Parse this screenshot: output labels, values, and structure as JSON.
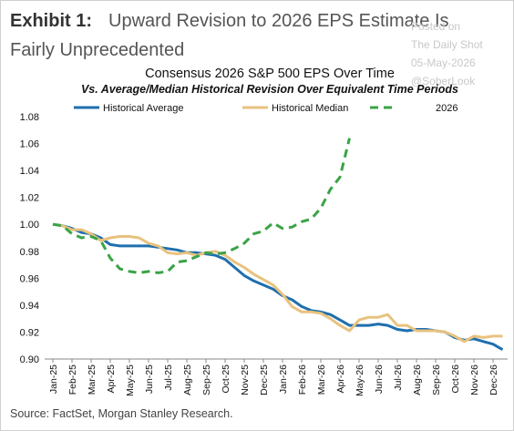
{
  "header": {
    "exhibit": "Exhibit 1:",
    "title": "Upward Revision to 2026 EPS Estimate Is Fairly Unprecedented"
  },
  "watermark": [
    "Posted on",
    "The Daily Shot",
    "05-May-2026",
    "@SoberLook"
  ],
  "source": "Source: FactSet, Morgan Stanley Research.",
  "chart_data": {
    "type": "line",
    "title": "Consensus 2026 S&P 500 EPS Over Time",
    "subtitle": "Vs. Average/Median Historical Revision Over Equivalent Time Periods",
    "categories": [
      "Jan-25",
      null,
      "Feb-25",
      null,
      "Mar-25",
      null,
      "Apr-25",
      null,
      "May-25",
      null,
      "Jun-25",
      null,
      "Jul-25",
      null,
      "Aug-25",
      null,
      "Sep-25",
      null,
      "Oct-25",
      null,
      "Nov-25",
      null,
      "Dec-25",
      null,
      "Jan-26",
      null,
      "Feb-26",
      null,
      "Mar-26",
      null,
      "Apr-26",
      null,
      "May-26",
      null,
      "Jun-26",
      null,
      "Jul-26",
      null,
      "Aug-26",
      null,
      "Sep-26",
      null,
      "Oct-26",
      null,
      "Nov-26",
      null,
      "Dec-26",
      null
    ],
    "series": [
      {
        "name": "Historical Average",
        "color": "#1f6fae",
        "dashed": false,
        "values": [
          1.0,
          0.999,
          0.997,
          0.994,
          0.993,
          0.99,
          0.985,
          0.984,
          0.984,
          0.984,
          0.984,
          0.983,
          0.982,
          0.981,
          0.979,
          0.979,
          0.978,
          0.977,
          0.974,
          0.968,
          0.962,
          0.958,
          0.955,
          0.952,
          0.947,
          0.944,
          0.939,
          0.936,
          0.935,
          0.933,
          0.929,
          0.925,
          0.925,
          0.925,
          0.926,
          0.925,
          0.922,
          0.921,
          0.922,
          0.922,
          0.921,
          0.92,
          0.916,
          0.914,
          0.915,
          0.913,
          0.911,
          0.907
        ]
      },
      {
        "name": "Historical Median",
        "color": "#e8c27e",
        "dashed": false,
        "values": [
          1.0,
          0.999,
          0.996,
          0.996,
          0.993,
          0.988,
          0.99,
          0.991,
          0.991,
          0.99,
          0.986,
          0.984,
          0.979,
          0.978,
          0.979,
          0.977,
          0.979,
          0.98,
          0.977,
          0.972,
          0.968,
          0.963,
          0.959,
          0.955,
          0.948,
          0.939,
          0.935,
          0.935,
          0.934,
          0.93,
          0.925,
          0.921,
          0.929,
          0.931,
          0.931,
          0.933,
          0.925,
          0.925,
          0.921,
          0.921,
          0.921,
          0.92,
          0.917,
          0.913,
          0.917,
          0.916,
          0.917,
          0.917
        ]
      },
      {
        "name": "2026",
        "color": "#3aa346",
        "dashed": true,
        "values": [
          1.0,
          0.999,
          0.993,
          0.99,
          0.991,
          0.988,
          0.975,
          0.967,
          0.965,
          0.964,
          0.965,
          0.964,
          0.965,
          0.972,
          0.973,
          0.976,
          0.979,
          0.978,
          0.979,
          0.982,
          0.986,
          0.993,
          0.995,
          1.001,
          0.997,
          0.998,
          1.002,
          1.004,
          1.012,
          1.026,
          1.035,
          1.064,
          null,
          null,
          null,
          null,
          null,
          null,
          null,
          null,
          null,
          null,
          null,
          null,
          null,
          null,
          null,
          null
        ]
      }
    ],
    "ylim": [
      0.9,
      1.08
    ],
    "yticks": [
      {
        "value": 0.9,
        "label": "0.90"
      },
      {
        "value": 0.92,
        "label": "0.92"
      },
      {
        "value": 0.94,
        "label": "0.94"
      },
      {
        "value": 0.96,
        "label": "0.96"
      },
      {
        "value": 0.98,
        "label": "0.98"
      },
      {
        "value": 1.0,
        "label": "1.00"
      },
      {
        "value": 1.02,
        "label": "1.02"
      },
      {
        "value": 1.04,
        "label": "1.04"
      },
      {
        "value": 1.06,
        "label": "1.06"
      },
      {
        "value": 1.08,
        "label": "1.08"
      }
    ],
    "grid": false,
    "legend": "top"
  }
}
